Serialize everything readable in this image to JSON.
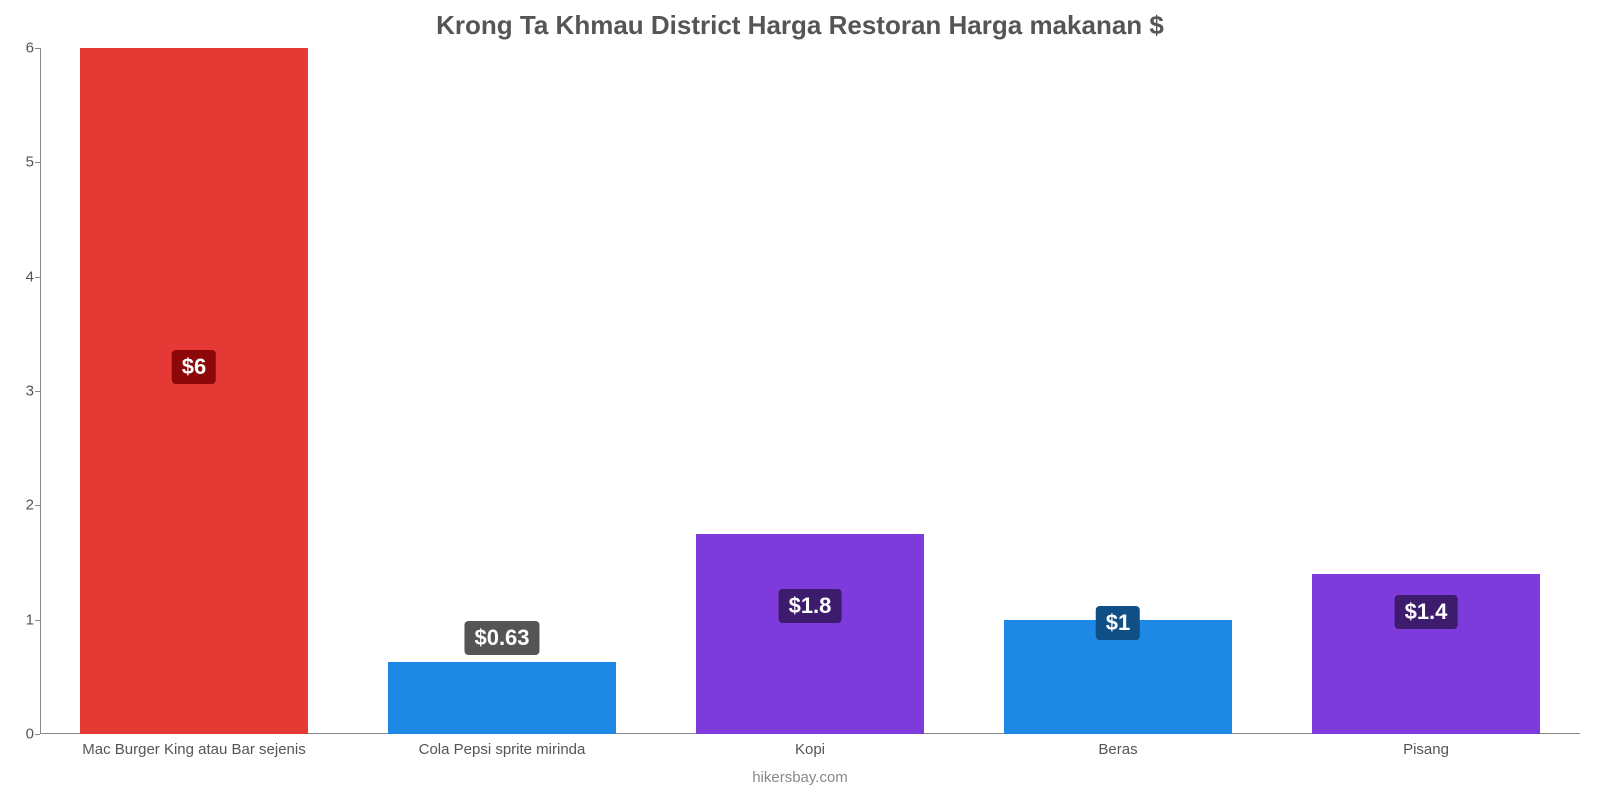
{
  "chart": {
    "type": "bar",
    "title": "Krong Ta Khmau District Harga Restoran Harga makanan $",
    "title_color": "#555555",
    "title_fontsize": 26,
    "background_color": "#ffffff",
    "axis_color": "#888888",
    "label_color": "#555555",
    "label_fontsize": 15,
    "value_fontsize": 22,
    "ylim": [
      0,
      6
    ],
    "ytick_step": 1,
    "yticks": [
      {
        "v": 0,
        "label": "0"
      },
      {
        "v": 1,
        "label": "1"
      },
      {
        "v": 2,
        "label": "2"
      },
      {
        "v": 3,
        "label": "3"
      },
      {
        "v": 4,
        "label": "4"
      },
      {
        "v": 5,
        "label": "5"
      },
      {
        "v": 6,
        "label": "6"
      }
    ],
    "bar_width_pct": 74,
    "bars": [
      {
        "category": "Mac Burger King atau Bar sejenis",
        "value": 6.0,
        "value_label": "$6",
        "color": "#e53935",
        "badge_bg": "#8c0707",
        "badge_offset_top": 0.44
      },
      {
        "category": "Cola Pepsi sprite mirinda",
        "value": 0.63,
        "value_label": "$0.63",
        "color": "#1e88e5",
        "badge_bg": "#555555",
        "badge_offset_top": -0.06
      },
      {
        "category": "Kopi",
        "value": 1.75,
        "value_label": "$1.8",
        "color": "#7e3bdc",
        "badge_bg": "#3d1b6d",
        "badge_offset_top": 0.08
      },
      {
        "category": "Beras",
        "value": 1.0,
        "value_label": "$1",
        "color": "#1e88e5",
        "badge_bg": "#0f4f85",
        "badge_offset_top": -0.02
      },
      {
        "category": "Pisang",
        "value": 1.4,
        "value_label": "$1.4",
        "color": "#7e3bdc",
        "badge_bg": "#3d1b6d",
        "badge_offset_top": 0.03
      }
    ],
    "source": "hikersbay.com"
  }
}
